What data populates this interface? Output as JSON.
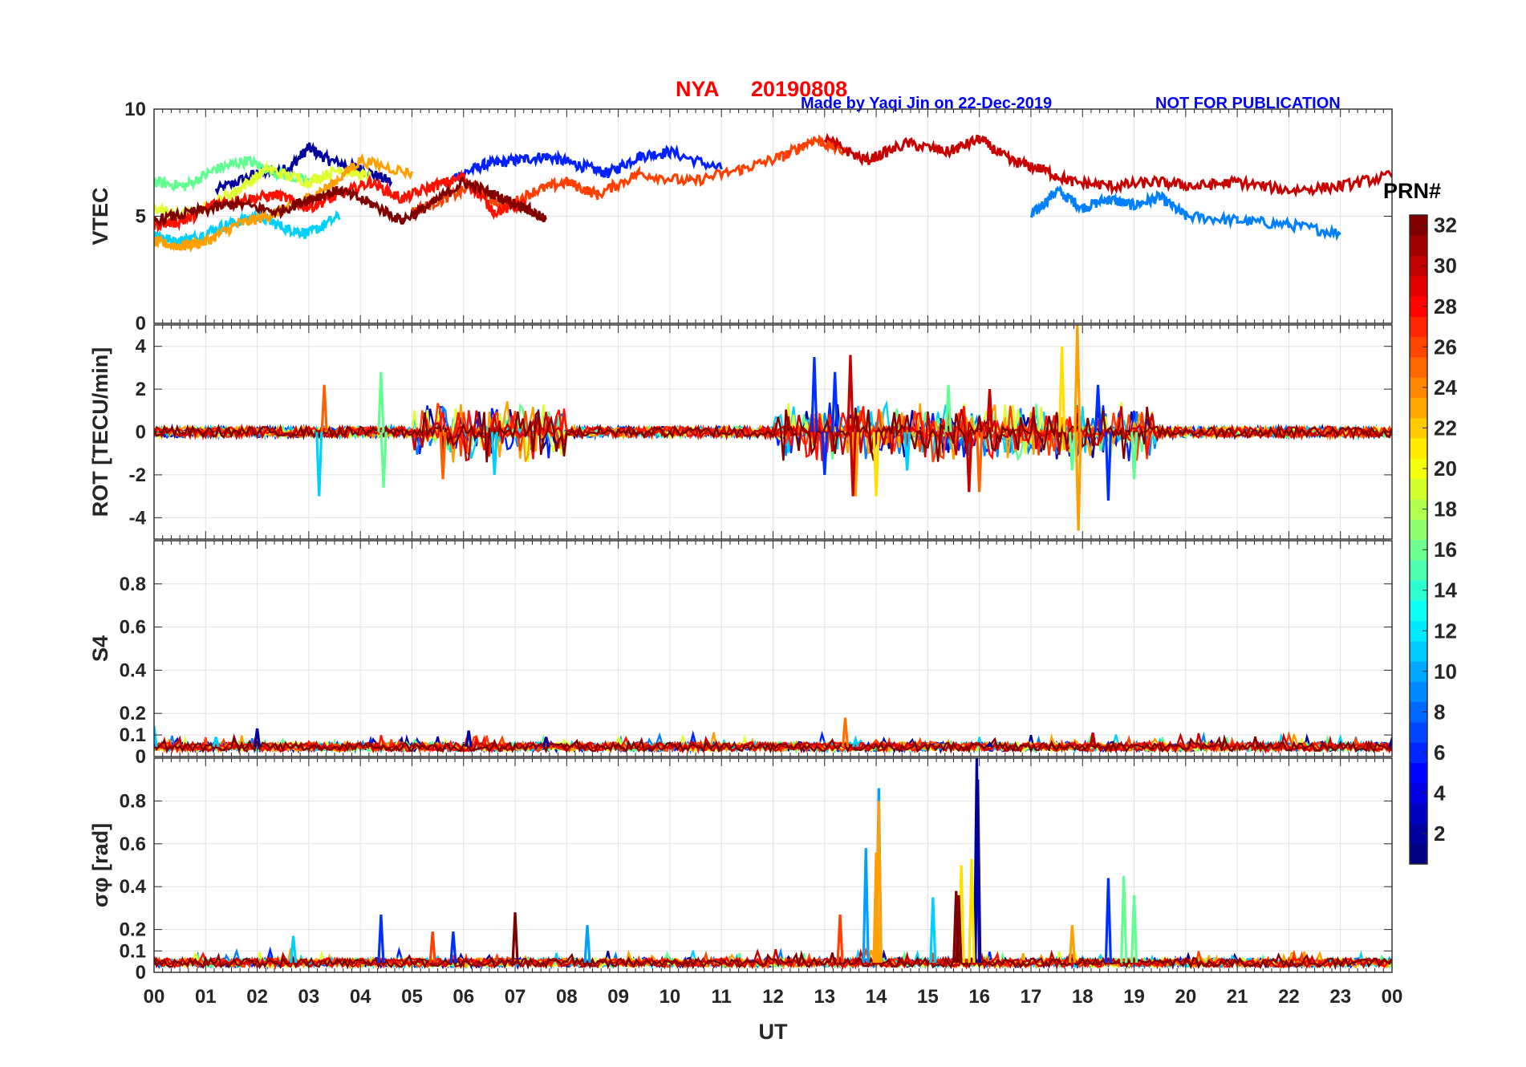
{
  "header": {
    "station": "NYA",
    "date": "20190808",
    "credit": "Made by Yaqi Jin on 22-Dec-2019",
    "notice": "NOT FOR PUBLICATION",
    "title_color": "#ff0000",
    "note_color": "#0000ff"
  },
  "colorbar": {
    "label": "PRN#",
    "ticks": [
      "2",
      "4",
      "6",
      "8",
      "10",
      "12",
      "14",
      "16",
      "18",
      "20",
      "22",
      "24",
      "26",
      "28",
      "30",
      "32"
    ],
    "range": [
      1,
      32
    ],
    "colormap": "jet"
  },
  "chart_data": [
    {
      "type": "line",
      "ylabel": "VTEC",
      "ylim": [
        0,
        10
      ],
      "yticks": [
        "0",
        "5",
        "10"
      ],
      "grid": true,
      "series": [
        {
          "prn": 2,
          "color": "#00009f",
          "x": [
            1.2,
            2.0,
            2.6,
            3.0,
            3.4,
            4.0,
            4.6
          ],
          "values": [
            6.2,
            7.0,
            7.2,
            8.2,
            7.6,
            7.2,
            6.6
          ]
        },
        {
          "prn": 5,
          "color": "#0020ff",
          "x": [
            5.8,
            6.4,
            7.0,
            7.6,
            8.2,
            8.8,
            9.4,
            10.0,
            11.0
          ],
          "values": [
            6.8,
            7.4,
            7.6,
            7.8,
            7.4,
            7.0,
            7.8,
            8.0,
            7.2
          ]
        },
        {
          "prn": 9,
          "color": "#0080ff",
          "x": [
            17.0,
            17.5,
            18.0,
            18.5,
            19.0,
            19.5,
            20.0,
            21.0,
            22.0,
            23.0
          ],
          "values": [
            5.0,
            6.2,
            5.4,
            5.8,
            5.5,
            5.9,
            5.0,
            4.8,
            4.6,
            4.2
          ]
        },
        {
          "prn": 12,
          "color": "#00d0ff",
          "x": [
            0.0,
            0.4,
            0.8,
            1.4,
            2.0,
            2.6,
            3.0,
            3.6
          ],
          "values": [
            4.2,
            3.8,
            4.0,
            4.6,
            5.0,
            4.4,
            4.2,
            5.0
          ]
        },
        {
          "prn": 16,
          "color": "#60ff90",
          "x": [
            0.0,
            0.6,
            1.2,
            1.8,
            2.4,
            3.0
          ],
          "values": [
            6.6,
            6.4,
            7.2,
            7.6,
            7.0,
            6.6
          ]
        },
        {
          "prn": 19,
          "color": "#e0ff30",
          "x": [
            0.0,
            0.5,
            1.0,
            1.6,
            2.2,
            3.0,
            3.6,
            4.2
          ],
          "values": [
            5.4,
            5.0,
            5.4,
            6.2,
            7.2,
            6.6,
            7.2,
            6.8
          ]
        },
        {
          "prn": 23,
          "color": "#ffa000",
          "x": [
            0.0,
            0.5,
            1.0,
            1.6,
            2.2,
            2.8,
            3.4,
            4.0,
            5.0
          ],
          "values": [
            3.8,
            3.6,
            3.8,
            4.6,
            5.0,
            5.6,
            6.4,
            7.6,
            7.0
          ]
        },
        {
          "prn": 26,
          "color": "#ff4000",
          "x": [
            5.0,
            5.6,
            6.2,
            6.8,
            7.4,
            8.0,
            8.6,
            9.4,
            10.4,
            11.4,
            12.2,
            12.8,
            13.4
          ],
          "values": [
            5.2,
            5.8,
            6.4,
            5.4,
            6.2,
            6.6,
            6.0,
            7.0,
            6.6,
            7.2,
            7.8,
            8.6,
            8.0
          ]
        },
        {
          "prn": 28,
          "color": "#ff1000",
          "x": [
            0.0,
            0.6,
            1.2,
            1.8,
            2.4,
            3.0,
            3.6,
            4.2,
            4.8,
            5.4,
            6.0,
            6.6,
            7.2
          ],
          "values": [
            4.6,
            4.8,
            5.6,
            5.8,
            6.0,
            5.4,
            6.0,
            6.6,
            5.8,
            6.4,
            6.8,
            5.2,
            5.6
          ]
        },
        {
          "prn": 30,
          "color": "#c80000",
          "x": [
            13.0,
            13.8,
            14.6,
            15.4,
            16.0,
            16.6,
            17.2,
            17.8,
            18.6,
            19.4,
            20.2,
            21.0,
            22.0,
            23.0,
            24.0
          ],
          "values": [
            8.6,
            7.6,
            8.4,
            8.0,
            8.6,
            7.6,
            7.2,
            6.6,
            6.4,
            6.6,
            6.4,
            6.6,
            6.2,
            6.4,
            6.9
          ]
        },
        {
          "prn": 32,
          "color": "#800000",
          "x": [
            0.0,
            0.8,
            1.6,
            2.4,
            3.0,
            3.6,
            4.2,
            4.8,
            5.4,
            6.0,
            6.6,
            7.2,
            7.6
          ],
          "values": [
            4.8,
            5.2,
            5.6,
            5.2,
            5.8,
            6.2,
            5.6,
            4.8,
            5.6,
            6.6,
            6.0,
            5.4,
            4.8
          ]
        }
      ]
    },
    {
      "type": "line",
      "ylabel": "ROT [TECU/min]",
      "ylim": [
        -5,
        5
      ],
      "yticks": [
        "-4",
        "-2",
        "0",
        "2",
        "4"
      ],
      "grid": true,
      "series": [
        {
          "prn": 4,
          "color": "#0030ff",
          "x": [
            12.8,
            13.0,
            13.2,
            18.3,
            18.5
          ],
          "values": [
            3.5,
            -2.0,
            2.8,
            2.2,
            -3.2
          ]
        },
        {
          "prn": 12,
          "color": "#00d0ff",
          "x": [
            3.2,
            6.6,
            14.6
          ],
          "values": [
            -3.0,
            -2.0,
            -1.8
          ]
        },
        {
          "prn": 16,
          "color": "#60ff90",
          "x": [
            4.4,
            4.45,
            15.4,
            17.8,
            19.0
          ],
          "values": [
            2.8,
            -2.6,
            2.2,
            -1.8,
            -2.2
          ]
        },
        {
          "prn": 20,
          "color": "#ffe000",
          "x": [
            14.0,
            17.6
          ],
          "values": [
            -3.0,
            4.0
          ]
        },
        {
          "prn": 23,
          "color": "#ffa000",
          "x": [
            17.9,
            17.92,
            13.6
          ],
          "values": [
            5.0,
            -4.6,
            -3.0
          ]
        },
        {
          "prn": 25,
          "color": "#ff6000",
          "x": [
            3.3,
            5.6,
            16.0
          ],
          "values": [
            2.2,
            -2.2,
            -2.8
          ]
        },
        {
          "prn": 30,
          "color": "#c80000",
          "x": [
            13.5,
            13.55,
            15.8,
            16.2
          ],
          "values": [
            3.6,
            -3.0,
            -2.8,
            2.0
          ]
        }
      ]
    },
    {
      "type": "line",
      "ylabel": "S4",
      "ylim": [
        0,
        1
      ],
      "yticks": [
        "0",
        "0.1",
        "0.2",
        "0.4",
        "0.6",
        "0.8"
      ],
      "grid": true,
      "series": [
        {
          "prn": 2,
          "color": "#00009f",
          "x": [
            2.0,
            6.1,
            7.6,
            16.2,
            18.2,
            24.0
          ],
          "values": [
            0.13,
            0.12,
            0.09,
            0.06,
            0.1,
            0.08
          ]
        },
        {
          "prn": 12,
          "color": "#00d0ff",
          "x": [
            0.0,
            1.2,
            13.6
          ],
          "values": [
            0.14,
            0.09,
            0.08
          ]
        },
        {
          "prn": 24,
          "color": "#ff7000",
          "x": [
            13.4
          ],
          "values": [
            0.18
          ]
        },
        {
          "prn": 30,
          "color": "#c80000",
          "x": [
            18.2,
            21.0
          ],
          "values": [
            0.11,
            0.06
          ]
        }
      ]
    },
    {
      "type": "line",
      "ylabel": "σφ [rad]",
      "ylim": [
        0,
        1
      ],
      "yticks": [
        "0",
        "0.1",
        "0.2",
        "0.4",
        "0.6",
        "0.8"
      ],
      "grid": true,
      "series": [
        {
          "prn": 2,
          "color": "#00009f",
          "x": [
            15.95,
            15.97
          ],
          "values": [
            1.0,
            0.9
          ]
        },
        {
          "prn": 4,
          "color": "#0030ff",
          "x": [
            4.4,
            5.8,
            18.5
          ],
          "values": [
            0.27,
            0.19,
            0.44
          ]
        },
        {
          "prn": 8,
          "color": "#00a0ff",
          "x": [
            8.4,
            13.8,
            14.05
          ],
          "values": [
            0.22,
            0.58,
            0.86
          ]
        },
        {
          "prn": 12,
          "color": "#00d0ff",
          "x": [
            2.7,
            15.1
          ],
          "values": [
            0.17,
            0.35
          ]
        },
        {
          "prn": 16,
          "color": "#60ff90",
          "x": [
            18.8,
            19.0
          ],
          "values": [
            0.45,
            0.36
          ]
        },
        {
          "prn": 20,
          "color": "#ffe000",
          "x": [
            15.65,
            15.85
          ],
          "values": [
            0.5,
            0.53
          ]
        },
        {
          "prn": 23,
          "color": "#ffa000",
          "x": [
            14.0,
            14.05,
            17.8
          ],
          "values": [
            0.56,
            0.8,
            0.22
          ]
        },
        {
          "prn": 26,
          "color": "#ff4000",
          "x": [
            5.4,
            13.3
          ],
          "values": [
            0.19,
            0.27
          ]
        },
        {
          "prn": 32,
          "color": "#800000",
          "x": [
            7.0,
            15.55,
            15.6
          ],
          "values": [
            0.28,
            0.38,
            0.36
          ]
        }
      ]
    }
  ],
  "x_axis": {
    "label": "UT",
    "ticks": [
      "00",
      "01",
      "02",
      "03",
      "04",
      "05",
      "06",
      "07",
      "08",
      "09",
      "10",
      "11",
      "12",
      "13",
      "14",
      "15",
      "16",
      "17",
      "18",
      "19",
      "20",
      "21",
      "22",
      "23",
      "00"
    ],
    "range_hours": [
      0,
      24
    ]
  }
}
